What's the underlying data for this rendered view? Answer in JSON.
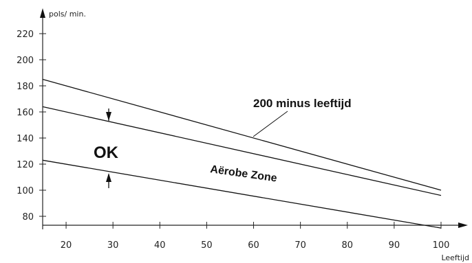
{
  "chart_data": {
    "type": "line",
    "xlabel": "Leeftijd",
    "ylabel": "pols/ min.",
    "xlim": [
      15,
      100
    ],
    "ylim": [
      70,
      230
    ],
    "x_ticks": [
      20,
      30,
      40,
      50,
      60,
      70,
      80,
      90,
      100
    ],
    "y_ticks": [
      80,
      100,
      120,
      140,
      160,
      180,
      200,
      220
    ],
    "grid": false,
    "series": [
      {
        "name": "200 minus leeftijd",
        "x": [
          15,
          100
        ],
        "y": [
          185,
          100
        ]
      },
      {
        "x": [
          15,
          100
        ],
        "y": [
          164,
          96
        ]
      },
      {
        "x": [
          15,
          100
        ],
        "y": [
          123,
          71
        ]
      }
    ],
    "annotations": [
      {
        "text": "200 minus leeftijd"
      },
      {
        "text": "OK"
      },
      {
        "text": "Aërobe Zone"
      }
    ]
  }
}
